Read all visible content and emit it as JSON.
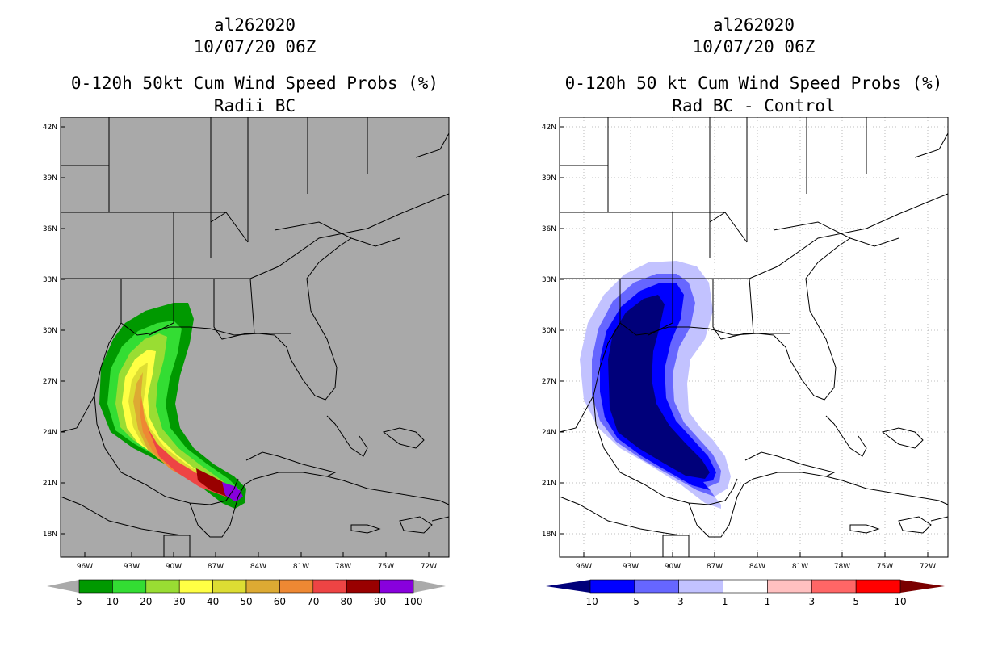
{
  "left": {
    "storm_id": "al262020",
    "datetime": "10/07/20 06Z",
    "product": "0-120h 50kt Cum Wind Speed Probs (%)",
    "subtitle": "Radii BC",
    "background_color": "#a9a9a9",
    "colorbar": {
      "colors": [
        "#009900",
        "#33dd33",
        "#99dd33",
        "#ffff44",
        "#dddd33",
        "#ddaa33",
        "#ee8833",
        "#ee4444",
        "#990000",
        "#8800dd"
      ],
      "labels": [
        "5",
        "10",
        "20",
        "30",
        "40",
        "50",
        "60",
        "70",
        "80",
        "90",
        "100"
      ]
    }
  },
  "right": {
    "storm_id": "al262020",
    "datetime": "10/07/20 06Z",
    "product": "0-120h 50 kt Cum Wind Speed Probs (%)",
    "subtitle": "Rad BC - Control",
    "background_color": "#ffffff",
    "colorbar": {
      "colors": [
        "#00007a",
        "#0000ff",
        "#6666ff",
        "#c2c2ff",
        "#ffffff",
        "#ffc0c0",
        "#ff6666",
        "#ff0000",
        "#7a0000"
      ],
      "labels": [
        "-10",
        "-5",
        "-3",
        "-1",
        "1",
        "3",
        "5",
        "10"
      ]
    }
  },
  "axes": {
    "lat_labels": [
      "42N",
      "39N",
      "36N",
      "33N",
      "30N",
      "27N",
      "24N",
      "21N",
      "18N"
    ],
    "lon_labels": [
      "96W",
      "93W",
      "90W",
      "87W",
      "84W",
      "81W",
      "78W",
      "75W",
      "72W"
    ]
  }
}
